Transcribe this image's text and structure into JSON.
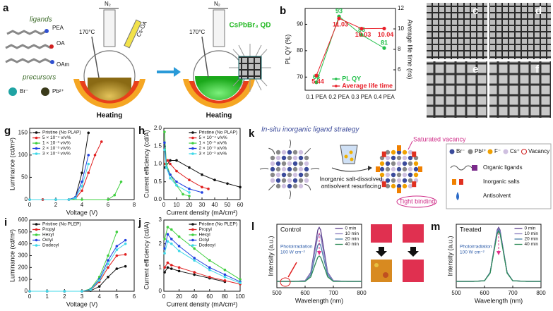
{
  "panel_a": {
    "label": "a",
    "ligands": "ligands",
    "ligand_names": [
      "PEA",
      "OA",
      "OAm"
    ],
    "precursors": "precursors",
    "ions": [
      "Br⁻",
      "Pb²⁺"
    ],
    "gas": [
      "N₂",
      "N₂"
    ],
    "temperature": [
      "170°C",
      "170°C"
    ],
    "injection": "Cs-OA",
    "heating": [
      "Heating",
      "Heating"
    ],
    "product": "CsPbBr₃ QD"
  },
  "micrographs": {
    "labels": [
      "c",
      "d",
      "e",
      "f"
    ]
  },
  "panel_k": {
    "label": "k",
    "title": "In-situ inorganic ligand strategy",
    "callouts": [
      "Saturated vacancy",
      "Tight binding"
    ],
    "process": [
      "Inorganic salt-dissolved",
      "antisolvent resurfacing"
    ],
    "legend": [
      "Br⁻",
      "Pb²⁺",
      "F⁻",
      "Cs⁺",
      "Vacancy",
      "Organic ligands",
      "Inorganic salts",
      "Antisolvent"
    ]
  },
  "chart_data": [
    {
      "type": "line",
      "label": "b",
      "categories": [
        "0.1 PEA",
        "0.2 PEA",
        "0.3 PEA",
        "0.4 PEA"
      ],
      "ylabel": "PL QY (%)",
      "y2label": "Average life time (ns)",
      "ylim": [
        65,
        96
      ],
      "yticks": [
        70,
        80,
        90
      ],
      "y2lim": [
        4,
        12
      ],
      "y2ticks": [
        6,
        8,
        10,
        12
      ],
      "series": [
        {
          "name": "PL QY",
          "color": "#22c04a",
          "values": [
            68,
            93,
            86,
            81
          ]
        },
        {
          "name": "Average life time",
          "color": "#e8202a",
          "axis": "y2",
          "values": [
            5.44,
            11.03,
            10.03,
            10.04
          ]
        }
      ],
      "show_values": true,
      "markers": true,
      "legend": "lower right"
    },
    {
      "type": "line",
      "label": "g",
      "xlabel": "Voltage (V)",
      "ylabel": "Luminance (cd/m²)",
      "xlim": [
        0,
        8
      ],
      "xticks": [
        0,
        2,
        4,
        6,
        8
      ],
      "ylim": [
        0,
        160
      ],
      "yticks": [
        0,
        50,
        100,
        150
      ],
      "markers": true,
      "legend": "upper left",
      "series": [
        {
          "name": "Pristine (No PLAP)",
          "color": "#111111",
          "x": [
            0,
            1,
            2,
            3,
            3.5,
            4,
            4.5
          ],
          "values": [
            0,
            0,
            0,
            0,
            5,
            60,
            150
          ]
        },
        {
          "name": "5 × 10⁻⁴ v/v%",
          "color": "#e02020",
          "x": [
            0,
            1,
            2,
            3,
            3.5,
            4,
            4.5,
            5,
            5.5
          ],
          "values": [
            0,
            0,
            0,
            0,
            2,
            20,
            60,
            100,
            130
          ]
        },
        {
          "name": "1 × 10⁻³ v/v%",
          "color": "#40d040",
          "x": [
            0,
            2,
            4,
            6,
            6.5,
            7
          ],
          "values": [
            0,
            0,
            0,
            0,
            10,
            40
          ]
        },
        {
          "name": "2 × 10⁻³ v/v%",
          "color": "#2040e0",
          "x": [
            0,
            2,
            3,
            3.5,
            4,
            4.5
          ],
          "values": [
            0,
            0,
            0,
            5,
            40,
            100
          ]
        },
        {
          "name": "3 × 10⁻³ v/v%",
          "color": "#40d8e8",
          "x": [
            0,
            2,
            3,
            3.5,
            4,
            4.5
          ],
          "values": [
            0,
            0,
            0,
            3,
            30,
            80
          ]
        }
      ]
    },
    {
      "type": "line",
      "label": "h",
      "xlabel": "Current density (mA/cm²)",
      "ylabel": "Current efficiency (cd/A)",
      "xlim": [
        0,
        60
      ],
      "xticks": [
        0,
        10,
        20,
        30,
        40,
        50,
        60
      ],
      "ylim": [
        0,
        2
      ],
      "yticks": [
        {
          "value": 0,
          "label": "0.0"
        },
        {
          "value": 0.5,
          "label": "0.5"
        },
        {
          "value": 1,
          "label": "1.0"
        },
        {
          "value": 1.5,
          "label": "1.5"
        },
        {
          "value": 2,
          "label": "2.0"
        }
      ],
      "markers": true,
      "legend": "upper right",
      "series": [
        {
          "name": "Pristine (No PLAP)",
          "color": "#111111",
          "x": [
            1,
            5,
            10,
            20,
            30,
            40,
            50,
            60
          ],
          "values": [
            0.9,
            1.1,
            1.1,
            0.9,
            0.7,
            0.55,
            0.45,
            0.35
          ]
        },
        {
          "name": "5 × 10⁻⁴ v/v%",
          "color": "#e02020",
          "x": [
            1,
            3,
            5,
            10,
            20,
            30,
            35
          ],
          "values": [
            1,
            1.1,
            1,
            0.8,
            0.55,
            0.35,
            0.3
          ]
        },
        {
          "name": "1 × 10⁻³ v/v%",
          "color": "#40d040",
          "x": [
            0.5,
            2,
            5,
            10,
            15,
            20
          ],
          "values": [
            1.9,
            1,
            0.7,
            0.4,
            0.15,
            0.1
          ]
        },
        {
          "name": "2 × 10⁻³ v/v%",
          "color": "#2040e0",
          "x": [
            0.5,
            2,
            5,
            10,
            20,
            30
          ],
          "values": [
            1.6,
            0.9,
            0.7,
            0.5,
            0.3,
            0.2
          ]
        },
        {
          "name": "3 × 10⁻³ v/v%",
          "color": "#40d8e8",
          "x": [
            0.5,
            2,
            5,
            10,
            20
          ],
          "values": [
            1.4,
            0.9,
            0.6,
            0.4,
            0.2
          ]
        }
      ]
    },
    {
      "type": "line",
      "label": "i",
      "xlabel": "Voltage (V)",
      "ylabel": "Luminance (cd/m²)",
      "xlim": [
        0,
        6
      ],
      "xticks": [
        0,
        1,
        2,
        3,
        4,
        5,
        6
      ],
      "ylim": [
        0,
        600
      ],
      "yticks": [
        0,
        100,
        200,
        300,
        400,
        500,
        600
      ],
      "markers": true,
      "legend": "upper left",
      "series": [
        {
          "name": "Pristine (No PLEP)",
          "color": "#111111",
          "x": [
            0,
            1,
            2,
            3,
            3.5,
            4,
            4.5,
            5,
            5.5
          ],
          "values": [
            0,
            0,
            0,
            0,
            5,
            40,
            120,
            190,
            210
          ]
        },
        {
          "name": "Propyl",
          "color": "#e02020",
          "x": [
            0,
            1,
            2,
            3,
            3.5,
            4,
            4.5,
            5,
            5.5
          ],
          "values": [
            0,
            0,
            0,
            0,
            10,
            80,
            200,
            300,
            310
          ]
        },
        {
          "name": "Hexyl",
          "color": "#40d040",
          "x": [
            0,
            1,
            2,
            3,
            3.5,
            4,
            4.5,
            5
          ],
          "values": [
            0,
            0,
            0,
            0,
            20,
            120,
            300,
            500
          ]
        },
        {
          "name": "Octyl",
          "color": "#2040e0",
          "x": [
            0,
            1,
            2,
            3,
            3.5,
            4,
            4.5,
            5,
            5.5
          ],
          "values": [
            0,
            0,
            0,
            0,
            15,
            100,
            260,
            380,
            430
          ]
        },
        {
          "name": "Dodecyl",
          "color": "#40d8e8",
          "x": [
            0,
            1,
            2,
            3,
            3.5,
            4,
            4.5,
            5,
            5.5
          ],
          "values": [
            0,
            0,
            0,
            0,
            12,
            90,
            230,
            350,
            400
          ]
        }
      ]
    },
    {
      "type": "line",
      "label": "j",
      "xlabel": "Current density (mA/cm²)",
      "ylabel": "Current efficiency (cd/A)",
      "xlim": [
        0,
        100
      ],
      "xticks": [
        0,
        20,
        40,
        60,
        80,
        100
      ],
      "ylim": [
        0,
        3
      ],
      "yticks": [
        0,
        1,
        2,
        3
      ],
      "markers": true,
      "legend": "upper right",
      "series": [
        {
          "name": "Pristine (No PLEP)",
          "color": "#111111",
          "x": [
            1,
            5,
            10,
            20,
            40,
            60,
            80
          ],
          "values": [
            0.8,
            1,
            0.95,
            0.85,
            0.7,
            0.55,
            0.4
          ]
        },
        {
          "name": "Propyl",
          "color": "#e02020",
          "x": [
            1,
            5,
            10,
            20,
            40,
            60,
            80,
            100
          ],
          "values": [
            1,
            1.2,
            1.1,
            1,
            0.8,
            0.6,
            0.45,
            0.3
          ]
        },
        {
          "name": "Hexyl",
          "color": "#40d040",
          "x": [
            1,
            5,
            10,
            20,
            40,
            60,
            80,
            100
          ],
          "values": [
            2.2,
            2.7,
            2.6,
            2.3,
            1.8,
            1.3,
            0.9,
            0.5
          ]
        },
        {
          "name": "Octyl",
          "color": "#2040e0",
          "x": [
            1,
            5,
            10,
            20,
            40,
            60,
            80,
            100
          ],
          "values": [
            1.8,
            2.4,
            2.2,
            1.9,
            1.4,
            1,
            0.7,
            0.4
          ]
        },
        {
          "name": "Dodecyl",
          "color": "#40d8e8",
          "x": [
            1,
            5,
            10,
            20,
            40,
            60,
            80,
            100
          ],
          "values": [
            1.6,
            2.1,
            2,
            1.7,
            1.3,
            0.9,
            0.6,
            0.35
          ]
        }
      ]
    },
    {
      "type": "line",
      "label": "l",
      "xlabel": "Wavelength (nm)",
      "ylabel": "Intensity (a.u.)",
      "xlim": [
        500,
        800
      ],
      "xticks": [
        500,
        600,
        700,
        800
      ],
      "ylim": [
        0,
        1
      ],
      "yticks": [],
      "markers": false,
      "legend": "upper right",
      "annotations": [
        "Control",
        "Photoirradiation",
        "100 W cm⁻²"
      ],
      "series": [
        {
          "name": "0 min",
          "color": "#5b3d8a",
          "x": [
            500,
            560,
            600,
            620,
            635,
            645,
            650,
            655,
            665,
            680,
            700,
            750,
            800
          ],
          "values": [
            0.1,
            0.1,
            0.11,
            0.24,
            0.64,
            0.91,
            0.95,
            0.91,
            0.64,
            0.24,
            0.11,
            0.1,
            0.1
          ]
        },
        {
          "name": "10 min",
          "color": "#8a7fc0",
          "x": [
            500,
            560,
            600,
            620,
            635,
            645,
            650,
            655,
            665,
            680,
            700,
            750,
            800
          ],
          "values": [
            0.1,
            0.1,
            0.11,
            0.23,
            0.58,
            0.81,
            0.85,
            0.81,
            0.58,
            0.23,
            0.11,
            0.1,
            0.1
          ]
        },
        {
          "name": "20 min",
          "color": "#4a7fa8",
          "x": [
            500,
            560,
            600,
            620,
            635,
            645,
            650,
            655,
            665,
            680,
            700,
            750,
            800
          ],
          "values": [
            0.1,
            0.1,
            0.1,
            0.2,
            0.48,
            0.67,
            0.7,
            0.67,
            0.48,
            0.2,
            0.1,
            0.1,
            0.1
          ]
        },
        {
          "name": "40 min",
          "color": "#2e8b57",
          "x": [
            500,
            560,
            600,
            620,
            635,
            645,
            650,
            655,
            665,
            680,
            700,
            750,
            800
          ],
          "values": [
            0.1,
            0.1,
            0.1,
            0.17,
            0.36,
            0.48,
            0.5,
            0.48,
            0.36,
            0.17,
            0.1,
            0.1,
            0.1
          ]
        }
      ]
    },
    {
      "type": "line",
      "label": "m",
      "xlabel": "Wavelength (nm)",
      "ylabel": "Intensity (a.u.)",
      "xlim": [
        500,
        800
      ],
      "xticks": [
        500,
        600,
        700,
        800
      ],
      "ylim": [
        0,
        1
      ],
      "yticks": [],
      "markers": false,
      "legend": "upper right",
      "annotations": [
        "Treated",
        "Photoirradiation",
        "100 W cm⁻²"
      ],
      "series": [
        {
          "name": "0 min",
          "color": "#5b3d8a",
          "x": [
            500,
            560,
            600,
            620,
            635,
            645,
            650,
            655,
            665,
            680,
            700,
            750,
            800
          ],
          "values": [
            0.1,
            0.1,
            0.11,
            0.24,
            0.64,
            0.91,
            0.95,
            0.91,
            0.64,
            0.24,
            0.11,
            0.1,
            0.1
          ]
        },
        {
          "name": "10 min",
          "color": "#8a7fc0",
          "x": [
            500,
            560,
            600,
            620,
            635,
            645,
            650,
            655,
            665,
            680,
            700,
            750,
            800
          ],
          "values": [
            0.1,
            0.1,
            0.11,
            0.24,
            0.63,
            0.89,
            0.93,
            0.89,
            0.63,
            0.24,
            0.11,
            0.1,
            0.1
          ]
        },
        {
          "name": "20 min",
          "color": "#4a7fa8",
          "x": [
            500,
            560,
            600,
            620,
            635,
            645,
            650,
            655,
            665,
            680,
            700,
            750,
            800
          ],
          "values": [
            0.1,
            0.1,
            0.11,
            0.24,
            0.62,
            0.87,
            0.91,
            0.87,
            0.62,
            0.24,
            0.11,
            0.1,
            0.1
          ]
        },
        {
          "name": "40 min",
          "color": "#2e8b57",
          "x": [
            500,
            560,
            600,
            620,
            635,
            645,
            650,
            655,
            665,
            680,
            700,
            750,
            800
          ],
          "values": [
            0.1,
            0.1,
            0.11,
            0.23,
            0.61,
            0.85,
            0.89,
            0.85,
            0.61,
            0.23,
            0.11,
            0.1,
            0.1
          ]
        }
      ]
    }
  ]
}
